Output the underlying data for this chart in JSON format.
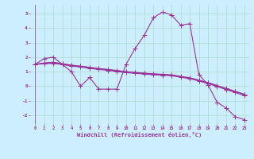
{
  "title": "",
  "xlabel": "Windchill (Refroidissement éolien,°C)",
  "ylabel": "",
  "xlim": [
    -0.5,
    23.5
  ],
  "ylim": [
    -2.6,
    5.6
  ],
  "yticks": [
    -2,
    -1,
    0,
    1,
    2,
    3,
    4,
    5
  ],
  "xticks": [
    0,
    1,
    2,
    3,
    4,
    5,
    6,
    7,
    8,
    9,
    10,
    11,
    12,
    13,
    14,
    15,
    16,
    17,
    18,
    19,
    20,
    21,
    22,
    23
  ],
  "bg_color": "#cceeff",
  "line_color": "#993399",
  "grid_color": "#aaddcc",
  "line1_x": [
    0,
    1,
    2,
    3,
    4,
    5,
    6,
    7,
    8,
    9,
    10,
    11,
    12,
    13,
    14,
    15,
    16,
    17,
    18,
    19,
    20,
    21,
    22,
    23
  ],
  "line1_y": [
    1.5,
    1.9,
    2.0,
    1.5,
    1.0,
    0.0,
    0.6,
    -0.2,
    -0.2,
    -0.2,
    1.5,
    2.6,
    3.5,
    4.7,
    5.1,
    4.9,
    4.2,
    4.3,
    0.8,
    0.1,
    -1.1,
    -1.5,
    -2.1,
    -2.3
  ],
  "line2_x": [
    0,
    1,
    2,
    3,
    4,
    5,
    6,
    7,
    8,
    9,
    10,
    11,
    12,
    13,
    14,
    15,
    16,
    17,
    18,
    19,
    20,
    21,
    22,
    23
  ],
  "line2_y": [
    1.5,
    1.6,
    1.65,
    1.55,
    1.45,
    1.38,
    1.3,
    1.22,
    1.15,
    1.08,
    1.0,
    0.95,
    0.9,
    0.85,
    0.82,
    0.78,
    0.68,
    0.58,
    0.42,
    0.25,
    0.05,
    -0.15,
    -0.35,
    -0.55
  ],
  "line3_x": [
    0,
    1,
    2,
    3,
    4,
    5,
    6,
    7,
    8,
    9,
    10,
    11,
    12,
    13,
    14,
    15,
    16,
    17,
    18,
    19,
    20,
    21,
    22,
    23
  ],
  "line3_y": [
    1.5,
    1.58,
    1.62,
    1.53,
    1.43,
    1.37,
    1.28,
    1.2,
    1.14,
    1.07,
    0.99,
    0.94,
    0.88,
    0.84,
    0.8,
    0.76,
    0.66,
    0.56,
    0.4,
    0.23,
    0.03,
    -0.17,
    -0.37,
    -0.57
  ],
  "line4_x": [
    0,
    1,
    2,
    3,
    4,
    5,
    6,
    7,
    8,
    9,
    10,
    11,
    12,
    13,
    14,
    15,
    16,
    17,
    18,
    19,
    20,
    21,
    22,
    23
  ],
  "line4_y": [
    1.5,
    1.55,
    1.58,
    1.49,
    1.38,
    1.32,
    1.23,
    1.15,
    1.09,
    1.01,
    0.93,
    0.89,
    0.83,
    0.79,
    0.76,
    0.72,
    0.62,
    0.52,
    0.36,
    0.18,
    -0.02,
    -0.23,
    -0.43,
    -0.65
  ],
  "marker_size": 2.5,
  "linewidth": 0.8
}
